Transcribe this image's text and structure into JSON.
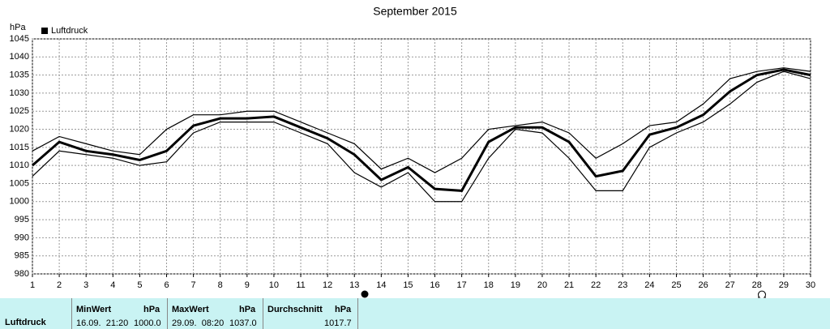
{
  "chart_data": {
    "type": "line",
    "title": "September 2015",
    "y_label": "hPa",
    "x": [
      1,
      2,
      3,
      4,
      5,
      6,
      7,
      8,
      9,
      10,
      11,
      12,
      13,
      14,
      15,
      16,
      17,
      18,
      19,
      20,
      21,
      22,
      23,
      24,
      25,
      26,
      27,
      28,
      29,
      30
    ],
    "series": [
      {
        "color": "#000000",
        "line_width": 1.2,
        "values": [
          1014,
          1018,
          1016,
          1014,
          1013,
          1020,
          1024,
          1024,
          1025,
          1025,
          1022,
          1019,
          1016,
          1009,
          1012,
          1008,
          1012,
          1020,
          1021,
          1022,
          1019,
          1012,
          1016,
          1021,
          1022,
          1027,
          1034,
          1036,
          1037,
          1036
        ]
      },
      {
        "color": "#000000",
        "line_width": 1.2,
        "values": [
          1007,
          1014,
          1013,
          1012,
          1010,
          1011,
          1019,
          1022,
          1022,
          1022,
          1019,
          1016,
          1008,
          1004,
          1008,
          1000,
          1000,
          1012,
          1020,
          1019,
          1012,
          1003,
          1003,
          1015,
          1019,
          1022,
          1027,
          1033,
          1036,
          1034
        ]
      },
      {
        "name": "Luftdruck",
        "color": "#000000",
        "line_width": 3,
        "values": [
          1010,
          1016.5,
          1014,
          1013,
          1011.5,
          1014,
          1021,
          1023,
          1023,
          1023.5,
          1020.5,
          1017.5,
          1013,
          1006,
          1009.5,
          1003.5,
          1003,
          1016.5,
          1020.5,
          1020.5,
          1016.5,
          1007,
          1008.5,
          1018.5,
          1020.5,
          1024,
          1030.5,
          1035,
          1036.5,
          1035
        ]
      }
    ],
    "xlim": [
      1,
      30
    ],
    "xticks": [
      1,
      2,
      3,
      4,
      5,
      6,
      7,
      8,
      9,
      10,
      11,
      12,
      13,
      14,
      15,
      16,
      17,
      18,
      19,
      20,
      21,
      22,
      23,
      24,
      25,
      26,
      27,
      28,
      29,
      30
    ],
    "ylim": [
      980,
      1045
    ],
    "yticks": [
      980,
      985,
      990,
      995,
      1000,
      1005,
      1010,
      1015,
      1020,
      1025,
      1030,
      1035,
      1040,
      1045
    ],
    "grid": true,
    "legend": "top-left"
  },
  "table": {
    "row_label": "Luftdruck",
    "min": {
      "header": "MinWert",
      "unit": "hPa",
      "time": "16.09.  21:20",
      "value": "1000.0"
    },
    "max": {
      "header": "MaxWert",
      "unit": "hPa",
      "time": "29.09.  08:20",
      "value": "1037.0"
    },
    "avg": {
      "header": "Durchschnitt",
      "unit": "hPa",
      "value": "1017.7"
    }
  }
}
